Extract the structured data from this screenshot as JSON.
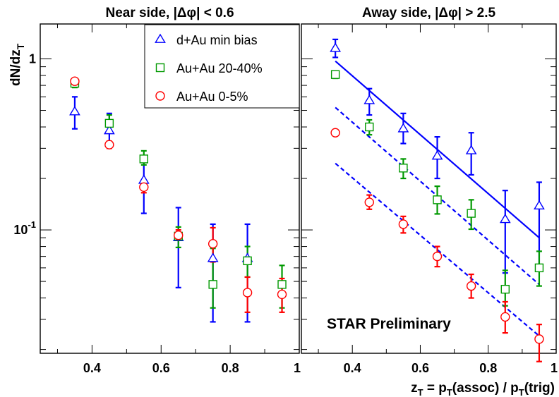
{
  "chart_data": [
    {
      "type": "scatter",
      "title": "Near side, |Δφ| < 0.6",
      "ylabel": "dN/dz",
      "ylabel_sub": "T",
      "xlim": [
        0.25,
        1.0
      ],
      "ylim": [
        0.019,
        1.6
      ],
      "yscale": "log",
      "x_ticks": [
        "0.4",
        "0.6",
        "0.8",
        "1"
      ],
      "y_ticks": [
        {
          "value": 1,
          "label": "1"
        },
        {
          "value": 0.1,
          "label": "10",
          "exp": "-1"
        }
      ],
      "legend": {
        "placement": "top-right"
      },
      "series": [
        {
          "name": "d+Au min bias",
          "marker": "triangle",
          "color": "#0000ff",
          "points": [
            {
              "x": 0.35,
              "y": 0.49,
              "lo": 0.39,
              "hi": 0.6
            },
            {
              "x": 0.45,
              "y": 0.38,
              "lo": 0.32,
              "hi": 0.48
            },
            {
              "x": 0.55,
              "y": 0.195,
              "lo": 0.125,
              "hi": 0.265
            },
            {
              "x": 0.65,
              "y": 0.09,
              "lo": 0.046,
              "hi": 0.135
            },
            {
              "x": 0.75,
              "y": 0.068,
              "lo": 0.029,
              "hi": 0.108
            },
            {
              "x": 0.85,
              "y": 0.068,
              "lo": 0.029,
              "hi": 0.108
            }
          ]
        },
        {
          "name": "Au+Au 20-40%",
          "marker": "square",
          "color": "#009900",
          "points": [
            {
              "x": 0.35,
              "y": 0.72,
              "lo": 0.68,
              "hi": 0.76
            },
            {
              "x": 0.45,
              "y": 0.42,
              "lo": 0.37,
              "hi": 0.47
            },
            {
              "x": 0.55,
              "y": 0.26,
              "lo": 0.24,
              "hi": 0.29
            },
            {
              "x": 0.65,
              "y": 0.092,
              "lo": 0.079,
              "hi": 0.104
            },
            {
              "x": 0.75,
              "y": 0.048,
              "lo": 0.035,
              "hi": 0.078
            },
            {
              "x": 0.85,
              "y": 0.066,
              "lo": 0.053,
              "hi": 0.08
            },
            {
              "x": 0.95,
              "y": 0.048,
              "lo": 0.035,
              "hi": 0.062
            }
          ]
        },
        {
          "name": "Au+Au 0-5%",
          "marker": "circle",
          "color": "#ff0000",
          "points": [
            {
              "x": 0.35,
              "y": 0.74,
              "lo": 0.71,
              "hi": 0.77
            },
            {
              "x": 0.45,
              "y": 0.315,
              "lo": 0.3,
              "hi": 0.33
            },
            {
              "x": 0.55,
              "y": 0.178,
              "lo": 0.165,
              "hi": 0.192
            },
            {
              "x": 0.65,
              "y": 0.093,
              "lo": 0.087,
              "hi": 0.1
            },
            {
              "x": 0.75,
              "y": 0.083,
              "lo": 0.065,
              "hi": 0.103
            },
            {
              "x": 0.85,
              "y": 0.043,
              "lo": 0.033,
              "hi": 0.053
            },
            {
              "x": 0.95,
              "y": 0.042,
              "lo": 0.033,
              "hi": 0.052
            }
          ]
        }
      ]
    },
    {
      "type": "scatter",
      "title": "Away side, |Δφ| > 2.5",
      "xlabel": "z",
      "xlabel_sub": "T",
      "xlabel_rest": " = p",
      "xlabel_sub2": "T",
      "xlabel_rest2": "(assoc) / p",
      "xlabel_sub3": "T",
      "xlabel_rest3": "(trig)",
      "xlim": [
        0.25,
        1.0
      ],
      "ylim": [
        0.019,
        1.6
      ],
      "yscale": "log",
      "x_ticks": [
        "0.4",
        "0.6",
        "0.8",
        "1"
      ],
      "annotation": "STAR Preliminary",
      "series": [
        {
          "name": "d+Au min bias",
          "marker": "triangle",
          "color": "#0000ff",
          "points": [
            {
              "x": 0.35,
              "y": 1.15,
              "lo": 1.02,
              "hi": 1.3
            },
            {
              "x": 0.45,
              "y": 0.57,
              "lo": 0.47,
              "hi": 0.67
            },
            {
              "x": 0.55,
              "y": 0.39,
              "lo": 0.32,
              "hi": 0.48
            },
            {
              "x": 0.65,
              "y": 0.27,
              "lo": 0.2,
              "hi": 0.35
            },
            {
              "x": 0.75,
              "y": 0.29,
              "lo": 0.21,
              "hi": 0.37
            },
            {
              "x": 0.85,
              "y": 0.115,
              "lo": 0.056,
              "hi": 0.17
            },
            {
              "x": 0.95,
              "y": 0.138,
              "lo": 0.06,
              "hi": 0.19
            }
          ]
        },
        {
          "name": "Au+Au 20-40%",
          "marker": "square",
          "color": "#009900",
          "points": [
            {
              "x": 0.35,
              "y": 0.81,
              "lo": 0.77,
              "hi": 0.85
            },
            {
              "x": 0.45,
              "y": 0.4,
              "lo": 0.36,
              "hi": 0.44
            },
            {
              "x": 0.55,
              "y": 0.23,
              "lo": 0.2,
              "hi": 0.26
            },
            {
              "x": 0.65,
              "y": 0.15,
              "lo": 0.124,
              "hi": 0.18
            },
            {
              "x": 0.75,
              "y": 0.125,
              "lo": 0.101,
              "hi": 0.15
            },
            {
              "x": 0.85,
              "y": 0.045,
              "lo": 0.036,
              "hi": 0.058
            },
            {
              "x": 0.95,
              "y": 0.06,
              "lo": 0.047,
              "hi": 0.075
            }
          ]
        },
        {
          "name": "Au+Au 0-5%",
          "marker": "circle",
          "color": "#ff0000",
          "points": [
            {
              "x": 0.35,
              "y": 0.37,
              "lo": null,
              "hi": null
            },
            {
              "x": 0.45,
              "y": 0.145,
              "lo": 0.132,
              "hi": 0.16
            },
            {
              "x": 0.55,
              "y": 0.108,
              "lo": 0.096,
              "hi": 0.12
            },
            {
              "x": 0.65,
              "y": 0.07,
              "lo": 0.061,
              "hi": 0.08
            },
            {
              "x": 0.75,
              "y": 0.047,
              "lo": 0.04,
              "hi": 0.055
            },
            {
              "x": 0.85,
              "y": 0.031,
              "lo": 0.025,
              "hi": 0.038
            },
            {
              "x": 0.95,
              "y": 0.023,
              "lo": 0.017,
              "hi": 0.028
            }
          ]
        }
      ],
      "fits": [
        {
          "style": "solid",
          "color": "#0000ff",
          "x": [
            0.35,
            0.95
          ],
          "y": [
            0.97,
            0.09
          ]
        },
        {
          "style": "dashed",
          "color": "#0000ff",
          "x": [
            0.35,
            0.95
          ],
          "y": [
            0.52,
            0.048
          ]
        },
        {
          "style": "dashed",
          "color": "#0000ff",
          "x": [
            0.35,
            0.95
          ],
          "y": [
            0.245,
            0.024
          ]
        }
      ]
    }
  ]
}
